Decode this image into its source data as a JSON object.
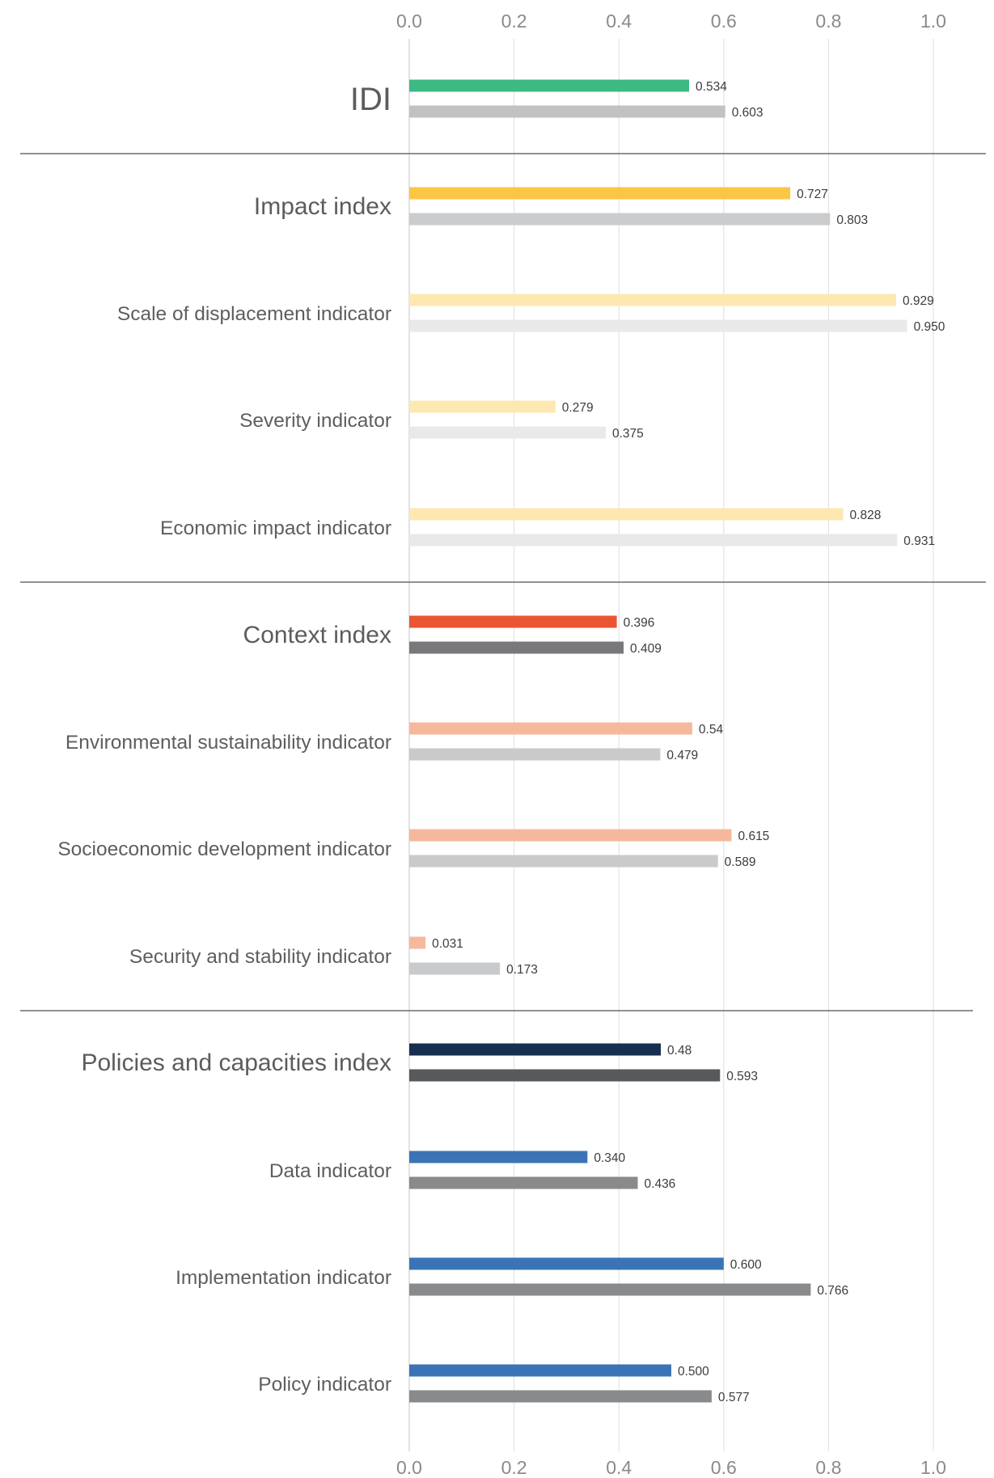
{
  "chart_data": {
    "type": "bar",
    "orientation": "horizontal",
    "xlim": [
      0,
      1
    ],
    "x_ticks": [
      "0.0",
      "0.2",
      "0.4",
      "0.6",
      "0.8",
      "1.0"
    ],
    "grid": true,
    "legend": "none",
    "categories": [
      "IDI",
      "Impact index",
      "Scale of displacement indicator",
      "Severity indicator",
      "Economic impact indicator",
      "Context index",
      "Environmental sustainability indicator",
      "Socioeconomic development indicator",
      "Security and stability indicator",
      "Policies and capacities index",
      "Data indicator",
      "Implementation indicator",
      "Policy indicator"
    ],
    "category_level": [
      "top",
      "index",
      "indicator",
      "indicator",
      "indicator",
      "index",
      "indicator",
      "indicator",
      "indicator",
      "index",
      "indicator",
      "indicator",
      "indicator"
    ],
    "series": [
      {
        "values": [
          0.534,
          0.727,
          0.929,
          0.279,
          0.828,
          0.396,
          0.54,
          0.615,
          0.031,
          0.48,
          0.34,
          0.6,
          0.5
        ],
        "labels": [
          "0.534",
          "0.727",
          "0.929",
          "0.279",
          "0.828",
          "0.396",
          "0.54",
          "0.615",
          "0.031",
          "0.48",
          "0.340",
          "0.600",
          "0.500"
        ],
        "colors": [
          "#3dba83",
          "#fcc645",
          "#fde8b2",
          "#fde8b2",
          "#fde8b2",
          "#e95631",
          "#f6b89c",
          "#f6b89c",
          "#f6b89c",
          "#17304f",
          "#3b74b6",
          "#3b74b6",
          "#3b74b6"
        ]
      },
      {
        "values": [
          0.603,
          0.803,
          0.95,
          0.375,
          0.931,
          0.409,
          0.479,
          0.589,
          0.173,
          0.593,
          0.436,
          0.766,
          0.577
        ],
        "labels": [
          "0.603",
          "0.803",
          "0.950",
          "0.375",
          "0.931",
          "0.409",
          "0.479",
          "0.589",
          "0.173",
          "0.593",
          "0.436",
          "0.766",
          "0.577"
        ],
        "colors": [
          "#c1c2c4",
          "#cbcccd",
          "#e9e9ea",
          "#e9e9ea",
          "#e9e9ea",
          "#78787a",
          "#c9cacb",
          "#c9cacb",
          "#c9cacb",
          "#58595b",
          "#898a8c",
          "#898a8c",
          "#898a8c"
        ]
      }
    ],
    "separators_after": [
      "IDI",
      "Economic impact indicator",
      "Security and stability indicator"
    ]
  }
}
